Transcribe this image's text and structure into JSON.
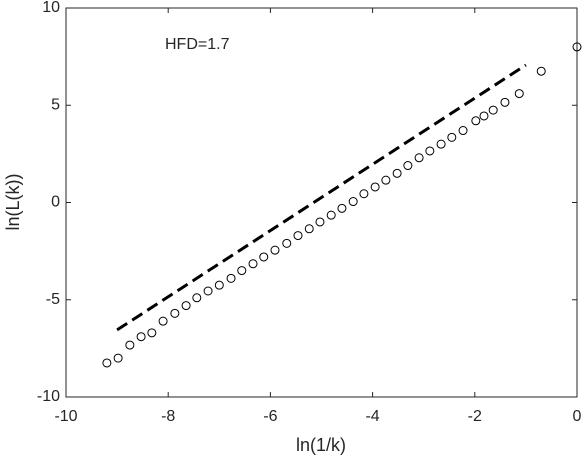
{
  "chart_data": {
    "type": "scatter",
    "annotation": "HFD=1.7",
    "xlabel": "ln(1/k)",
    "ylabel": "ln(L(k))",
    "xlim": [
      -10,
      0
    ],
    "ylim": [
      -10,
      10
    ],
    "xticks": [
      -10,
      -8,
      -6,
      -4,
      -2,
      0
    ],
    "yticks": [
      -10,
      -5,
      0,
      5,
      10
    ],
    "grid": false,
    "series": [
      {
        "color": "#000000",
        "marker": "circle",
        "x": [
          -9.2,
          -8.98,
          -8.75,
          -8.53,
          -8.32,
          -8.1,
          -7.87,
          -7.65,
          -7.44,
          -7.22,
          -7.0,
          -6.77,
          -6.56,
          -6.34,
          -6.13,
          -5.91,
          -5.68,
          -5.46,
          -5.24,
          -5.03,
          -4.81,
          -4.6,
          -4.38,
          -4.17,
          -3.95,
          -3.74,
          -3.52,
          -3.31,
          -3.09,
          -2.88,
          -2.66,
          -2.45,
          -2.23,
          -1.98,
          -1.82,
          -1.64,
          -1.41,
          -1.13,
          -0.7,
          0
        ],
        "values": [
          -8.25,
          -8.0,
          -7.33,
          -6.9,
          -6.7,
          -6.1,
          -5.7,
          -5.3,
          -4.9,
          -4.55,
          -4.25,
          -3.9,
          -3.5,
          -3.15,
          -2.8,
          -2.45,
          -2.1,
          -1.7,
          -1.35,
          -1.0,
          -0.65,
          -0.3,
          0.05,
          0.45,
          0.8,
          1.15,
          1.5,
          1.9,
          2.3,
          2.65,
          3.0,
          3.35,
          3.7,
          4.2,
          4.45,
          4.75,
          5.15,
          5.6,
          6.75,
          8.0
        ]
      },
      {
        "color": "#000000",
        "marker": "none",
        "dash": true,
        "x": [
          -9,
          -1
        ],
        "values": [
          -6.55,
          7.07
        ]
      }
    ]
  }
}
